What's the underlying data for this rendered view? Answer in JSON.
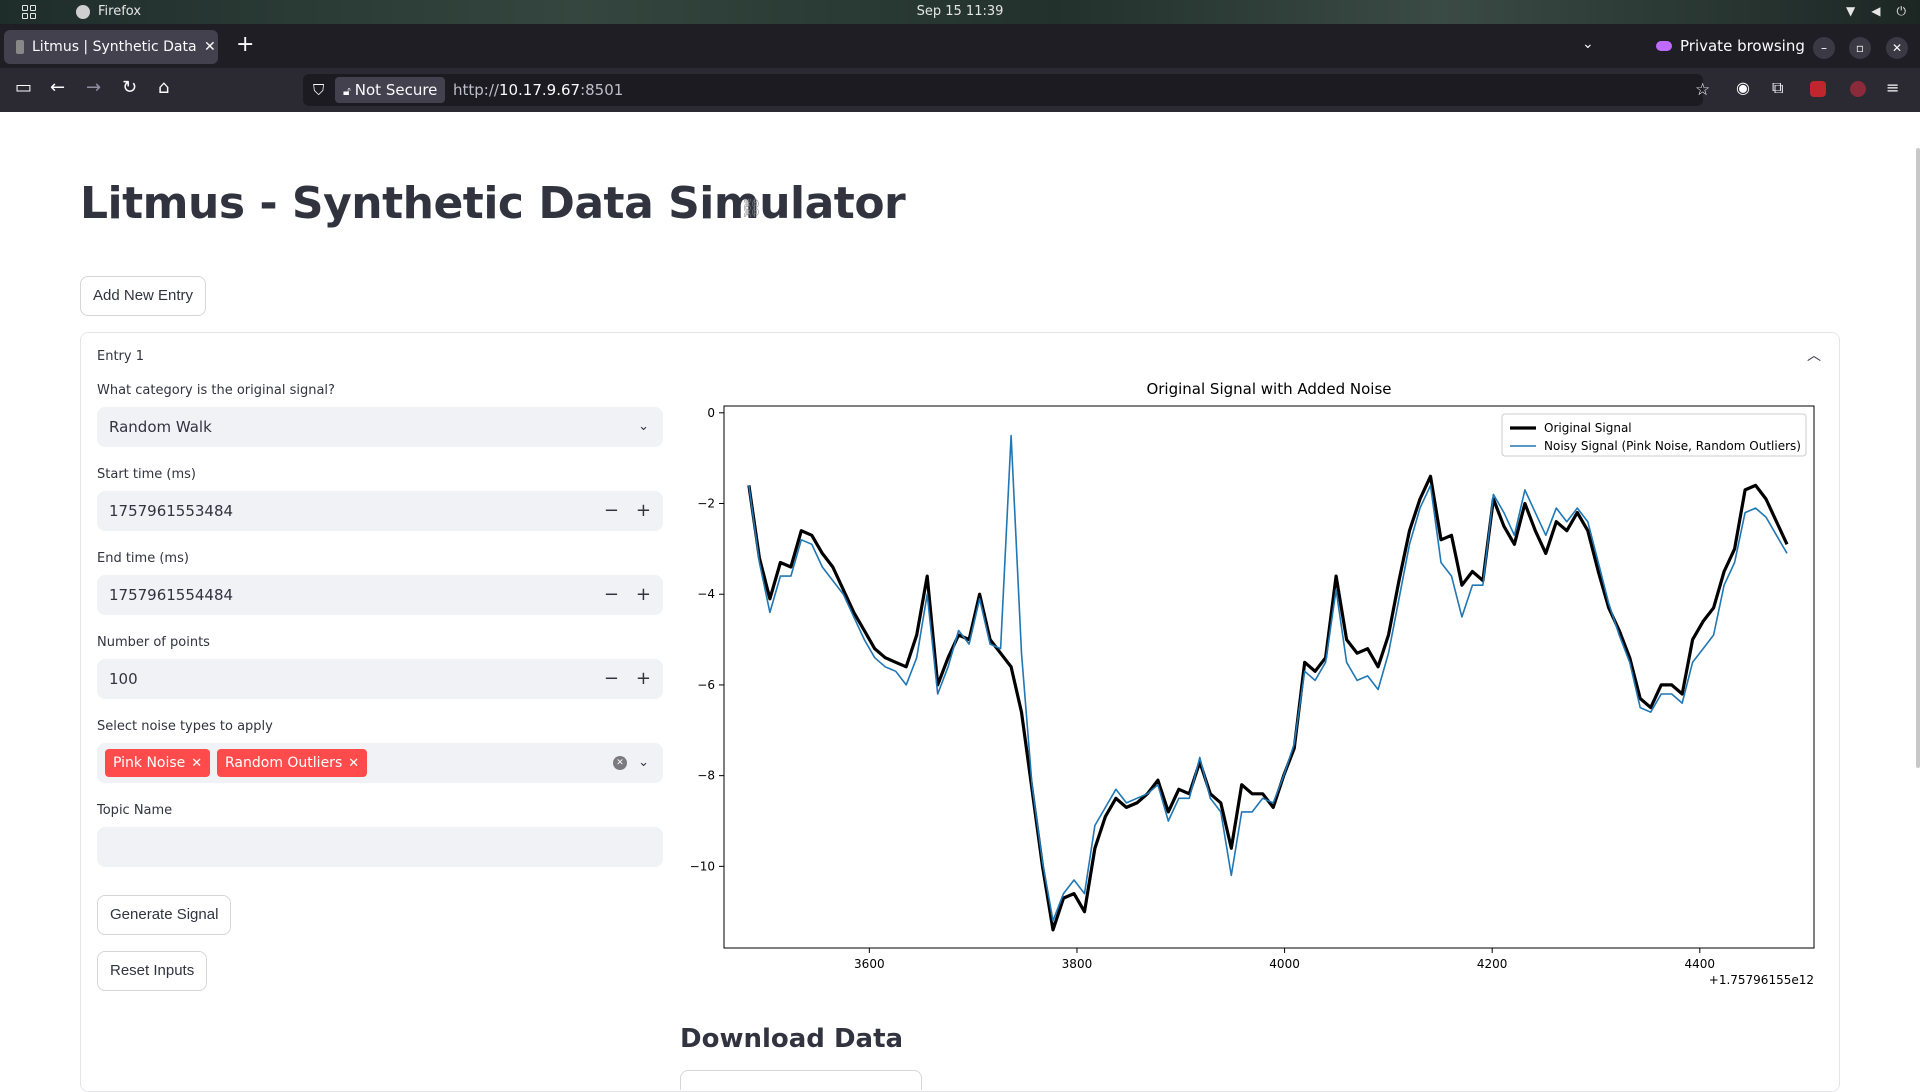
{
  "os": {
    "app_name": "Firefox",
    "clock": "Sep 15  11:39"
  },
  "browser": {
    "tab_title": "Litmus | Synthetic Data Simulator",
    "tab_close": "✕",
    "new_tab": "+",
    "private_label": "Private browsing",
    "not_secure_label": "Not Secure",
    "url_prefix": "http://",
    "url_host": "10.17.9.67",
    "url_port": ":8501"
  },
  "page": {
    "title": "Litmus - Synthetic Data Simulator",
    "add_entry_label": "Add New Entry",
    "entry": {
      "title": "Entry 1",
      "category_label": "What category is the original signal?",
      "category_value": "Random Walk",
      "start_label": "Start time (ms)",
      "start_value": "1757961553484",
      "end_label": "End time (ms)",
      "end_value": "1757961554484",
      "points_label": "Number of points",
      "points_value": "100",
      "noise_label": "Select noise types to apply",
      "noise_chips": [
        "Pink Noise",
        "Random Outliers"
      ],
      "topic_label": "Topic Name",
      "topic_value": "",
      "generate_label": "Generate Signal",
      "reset_label": "Reset Inputs"
    },
    "download_heading": "Download Data"
  },
  "chart_data": {
    "type": "line",
    "title": "Original Signal with Added Noise",
    "xlabel": "",
    "ylabel": "",
    "x_offset_label": "+1.75796155e12",
    "xlim": [
      3460,
      4510
    ],
    "ylim": [
      -11.8,
      0.15
    ],
    "xticks": [
      3600,
      3800,
      4000,
      4200,
      4400
    ],
    "yticks": [
      0,
      -2,
      -4,
      -6,
      -8,
      -10
    ],
    "ytick_labels": [
      "0",
      "−2",
      "−4",
      "−6",
      "−8",
      "−10"
    ],
    "legend_position": "upper right",
    "colors": {
      "original": "#000000",
      "noisy": "#1f77b4"
    },
    "x_start": 3484,
    "x_step": 10.101,
    "series": [
      {
        "name": "Original Signal",
        "values": [
          -1.6,
          -3.2,
          -4.1,
          -3.3,
          -3.4,
          -2.6,
          -2.7,
          -3.1,
          -3.4,
          -3.9,
          -4.4,
          -4.8,
          -5.2,
          -5.4,
          -5.5,
          -5.6,
          -4.9,
          -3.6,
          -6.0,
          -5.4,
          -4.9,
          -5.0,
          -4.0,
          -5.0,
          -5.3,
          -5.6,
          -6.6,
          -8.3,
          -10.0,
          -11.4,
          -10.7,
          -10.6,
          -11.0,
          -9.6,
          -8.9,
          -8.5,
          -8.7,
          -8.6,
          -8.4,
          -8.1,
          -8.8,
          -8.3,
          -8.4,
          -7.7,
          -8.4,
          -8.6,
          -9.6,
          -8.2,
          -8.4,
          -8.4,
          -8.7,
          -8.0,
          -7.4,
          -5.5,
          -5.7,
          -5.4,
          -3.6,
          -5.0,
          -5.3,
          -5.2,
          -5.6,
          -4.9,
          -3.7,
          -2.6,
          -1.9,
          -1.4,
          -2.8,
          -2.7,
          -3.8,
          -3.5,
          -3.7,
          -1.9,
          -2.5,
          -2.9,
          -2.0,
          -2.6,
          -3.1,
          -2.4,
          -2.6,
          -2.2,
          -2.6,
          -3.5,
          -4.3,
          -4.8,
          -5.4,
          -6.3,
          -6.5,
          -6.0,
          -6.0,
          -6.2,
          -5.0,
          -4.6,
          -4.3,
          -3.5,
          -3.0,
          -1.7,
          -1.6,
          -1.9,
          -2.4,
          -2.9
        ]
      },
      {
        "name": "Noisy Signal (Pink Noise, Random Outliers)",
        "values": [
          -1.6,
          -3.3,
          -4.4,
          -3.6,
          -3.6,
          -2.8,
          -2.9,
          -3.4,
          -3.7,
          -4.0,
          -4.5,
          -5.0,
          -5.4,
          -5.6,
          -5.7,
          -6.0,
          -5.4,
          -4.0,
          -6.2,
          -5.6,
          -4.8,
          -5.1,
          -4.1,
          -5.1,
          -5.2,
          -0.5,
          -5.3,
          -8.2,
          -9.9,
          -11.2,
          -10.6,
          -10.3,
          -10.6,
          -9.1,
          -8.7,
          -8.3,
          -8.6,
          -8.5,
          -8.4,
          -8.2,
          -9.0,
          -8.5,
          -8.5,
          -7.6,
          -8.5,
          -8.8,
          -10.2,
          -8.8,
          -8.8,
          -8.5,
          -8.6,
          -8.0,
          -7.3,
          -5.7,
          -5.9,
          -5.5,
          -3.9,
          -5.5,
          -5.9,
          -5.8,
          -6.1,
          -5.3,
          -4.1,
          -2.9,
          -2.1,
          -1.6,
          -3.3,
          -3.6,
          -4.5,
          -3.8,
          -3.8,
          -1.8,
          -2.2,
          -2.7,
          -1.7,
          -2.2,
          -2.7,
          -2.1,
          -2.4,
          -2.1,
          -2.4,
          -3.3,
          -4.2,
          -4.9,
          -5.5,
          -6.5,
          -6.6,
          -6.2,
          -6.2,
          -6.4,
          -5.5,
          -5.2,
          -4.9,
          -3.8,
          -3.3,
          -2.2,
          -2.1,
          -2.3,
          -2.7,
          -3.1
        ]
      }
    ]
  }
}
